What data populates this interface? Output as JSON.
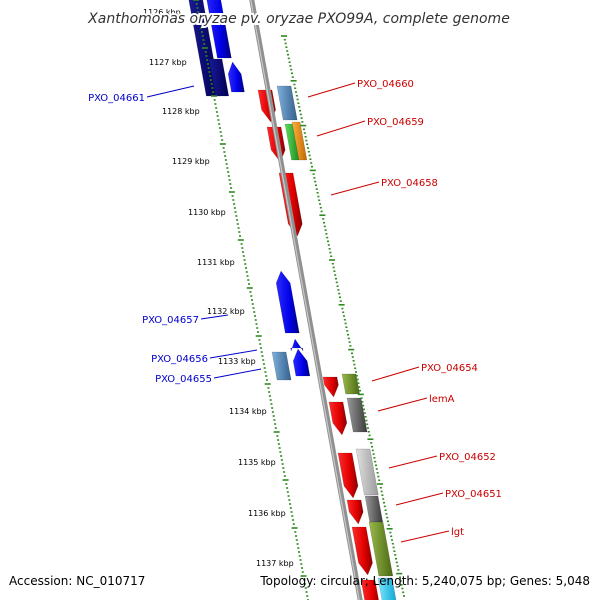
{
  "title": "Xanthomonas oryzae pv. oryzae PXO99A, complete genome",
  "footer": {
    "accession": "Accession: NC_010717",
    "topology": "Topology: circular; Length: 5,240,075 bp; Genes: 5,048"
  },
  "colors": {
    "backbone": "#888888",
    "ticks": "#2e8b1e",
    "forward_label": "#cc0000",
    "reverse_label": "#0000cc"
  },
  "ruler": [
    "1126 kbp",
    "1127 kbp",
    "1128 kbp",
    "1129 kbp",
    "1130 kbp",
    "1131 kbp",
    "1132 kbp",
    "1133 kbp",
    "1134 kbp",
    "1135 kbp",
    "1136 kbp",
    "1137 kbp"
  ],
  "gene_labels": {
    "forward": [
      "PXO_04660",
      "PXO_04659",
      "PXO_04658",
      "PXO_04654",
      "lemA",
      "PXO_04652",
      "PXO_04651",
      "lgt"
    ],
    "reverse": [
      "PXO_04661",
      "PXO_04657",
      "PXO_04656",
      "PXO_04655"
    ]
  }
}
